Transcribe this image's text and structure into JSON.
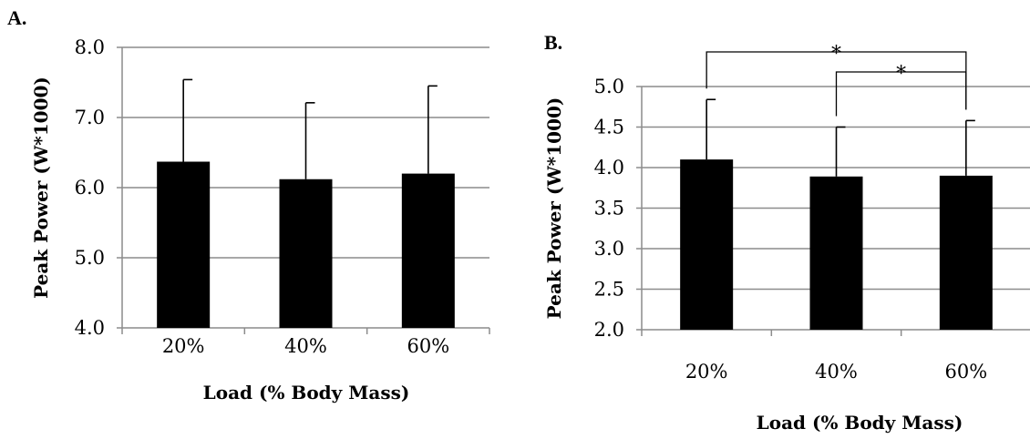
{
  "chart_data": [
    {
      "panel_label": "A.",
      "type": "bar",
      "categories": [
        "20%",
        "40%",
        "60%"
      ],
      "values": [
        6.37,
        6.12,
        6.2
      ],
      "error_upper": [
        1.17,
        1.09,
        1.25
      ],
      "ylabel": "Peak Power (W*1000)",
      "xlabel": "Load (% Body Mass)",
      "ylim": [
        4.0,
        8.0
      ],
      "yticks": [
        "4.0",
        "5.0",
        "6.0",
        "7.0",
        "8.0"
      ],
      "grid": true,
      "bar_color": "#000000",
      "annotations": []
    },
    {
      "panel_label": "B.",
      "type": "bar",
      "categories": [
        "20%",
        "40%",
        "60%"
      ],
      "values": [
        4.1,
        3.89,
        3.9
      ],
      "error_upper": [
        0.74,
        0.61,
        0.68
      ],
      "ylabel": "Peak Power (W*1000)",
      "xlabel": "Load (% Body Mass)",
      "ylim": [
        2.0,
        5.0
      ],
      "yticks": [
        "2.0",
        "2.5",
        "3.0",
        "3.5",
        "4.0",
        "4.5",
        "5.0"
      ],
      "grid": true,
      "bar_color": "#000000",
      "annotations": [
        {
          "from": 0,
          "to": 2,
          "text": "*"
        },
        {
          "from": 1,
          "to": 2,
          "text": "*"
        }
      ]
    }
  ]
}
